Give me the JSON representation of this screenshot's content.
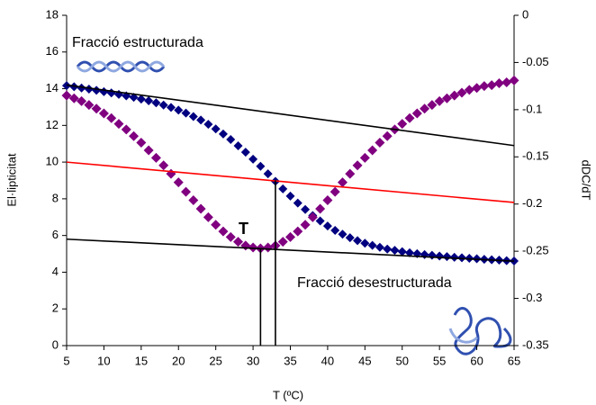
{
  "chart_data": {
    "type": "line",
    "x_label": "T (ºC)",
    "y_label": "El·lipticitat",
    "y2_label": "dDC/dT",
    "xlim": [
      5,
      65
    ],
    "xticks": [
      5,
      10,
      15,
      20,
      25,
      30,
      35,
      40,
      45,
      50,
      55,
      60,
      65
    ],
    "ylim": [
      0,
      18
    ],
    "yticks": [
      0,
      2,
      4,
      6,
      8,
      10,
      12,
      14,
      16,
      18
    ],
    "y2lim": [
      -0.35,
      0
    ],
    "y2ticks": [
      0,
      -0.05,
      -0.1,
      -0.15,
      -0.2,
      -0.25,
      -0.3,
      -0.35
    ],
    "annotations": [
      "Fracció estructurada",
      "Fracció desestructurada",
      "T"
    ],
    "series": [
      {
        "color": "#000080",
        "marker": "diamond",
        "x": [
          5,
          6,
          7,
          8,
          9,
          10,
          11,
          12,
          13,
          14,
          15,
          16,
          17,
          18,
          19,
          20,
          21,
          22,
          23,
          24,
          25,
          26,
          27,
          28,
          29,
          30,
          31,
          32,
          33,
          34,
          35,
          36,
          37,
          38,
          39,
          40,
          41,
          42,
          43,
          44,
          45,
          46,
          47,
          48,
          49,
          50,
          51,
          52,
          53,
          54,
          55,
          56,
          57,
          58,
          59,
          60,
          61,
          62,
          63,
          64,
          65
        ],
        "values": [
          14.17,
          14.11,
          14.04,
          13.98,
          13.91,
          13.84,
          13.77,
          13.69,
          13.61,
          13.53,
          13.43,
          13.34,
          13.23,
          13.11,
          12.98,
          12.83,
          12.67,
          12.48,
          12.29,
          12.06,
          11.81,
          11.53,
          11.23,
          10.89,
          10.54,
          10.16,
          9.77,
          9.36,
          8.95,
          8.54,
          8.15,
          7.77,
          7.42,
          7.09,
          6.79,
          6.52,
          6.28,
          6.07,
          5.88,
          5.72,
          5.58,
          5.46,
          5.36,
          5.26,
          5.19,
          5.12,
          5.06,
          5.01,
          4.96,
          4.92,
          4.88,
          4.85,
          4.81,
          4.79,
          4.76,
          4.73,
          4.7,
          4.68,
          4.66,
          4.63,
          4.61
        ]
      },
      {
        "color": "#800080",
        "marker": "diamond",
        "axis": "y2",
        "x": [
          5,
          6,
          7,
          8,
          9,
          10,
          11,
          12,
          13,
          14,
          15,
          16,
          17,
          18,
          19,
          20,
          21,
          22,
          23,
          24,
          25,
          26,
          27,
          28,
          29,
          30,
          31,
          32,
          33,
          34,
          35,
          36,
          37,
          38,
          39,
          40,
          41,
          42,
          43,
          44,
          45,
          46,
          47,
          48,
          49,
          50,
          51,
          52,
          53,
          54,
          55,
          56,
          57,
          58,
          59,
          60,
          61,
          62,
          63,
          64,
          65
        ],
        "values": [
          -0.085,
          -0.088,
          -0.091,
          -0.095,
          -0.099,
          -0.104,
          -0.109,
          -0.115,
          -0.121,
          -0.128,
          -0.135,
          -0.143,
          -0.151,
          -0.159,
          -0.168,
          -0.177,
          -0.187,
          -0.196,
          -0.205,
          -0.214,
          -0.222,
          -0.229,
          -0.235,
          -0.24,
          -0.244,
          -0.246,
          -0.247,
          -0.246,
          -0.244,
          -0.24,
          -0.235,
          -0.229,
          -0.222,
          -0.214,
          -0.205,
          -0.196,
          -0.187,
          -0.177,
          -0.168,
          -0.159,
          -0.151,
          -0.143,
          -0.135,
          -0.128,
          -0.121,
          -0.115,
          -0.109,
          -0.104,
          -0.099,
          -0.095,
          -0.091,
          -0.088,
          -0.085,
          -0.082,
          -0.079,
          -0.077,
          -0.075,
          -0.074,
          -0.072,
          -0.071,
          -0.069
        ]
      },
      {
        "color": "#000000",
        "x": [
          5,
          65
        ],
        "values": [
          14.2,
          10.9
        ]
      },
      {
        "color": "#ff0000",
        "x": [
          5,
          65
        ],
        "values": [
          10.0,
          7.8
        ]
      },
      {
        "color": "#000000",
        "x": [
          5,
          65
        ],
        "values": [
          5.8,
          4.6
        ]
      },
      {
        "color": "#000000",
        "x": [
          31,
          31
        ],
        "values": [
          0,
          5.25
        ]
      },
      {
        "color": "#000000",
        "x": [
          33,
          33
        ],
        "values": [
          0,
          9.0
        ]
      }
    ]
  }
}
